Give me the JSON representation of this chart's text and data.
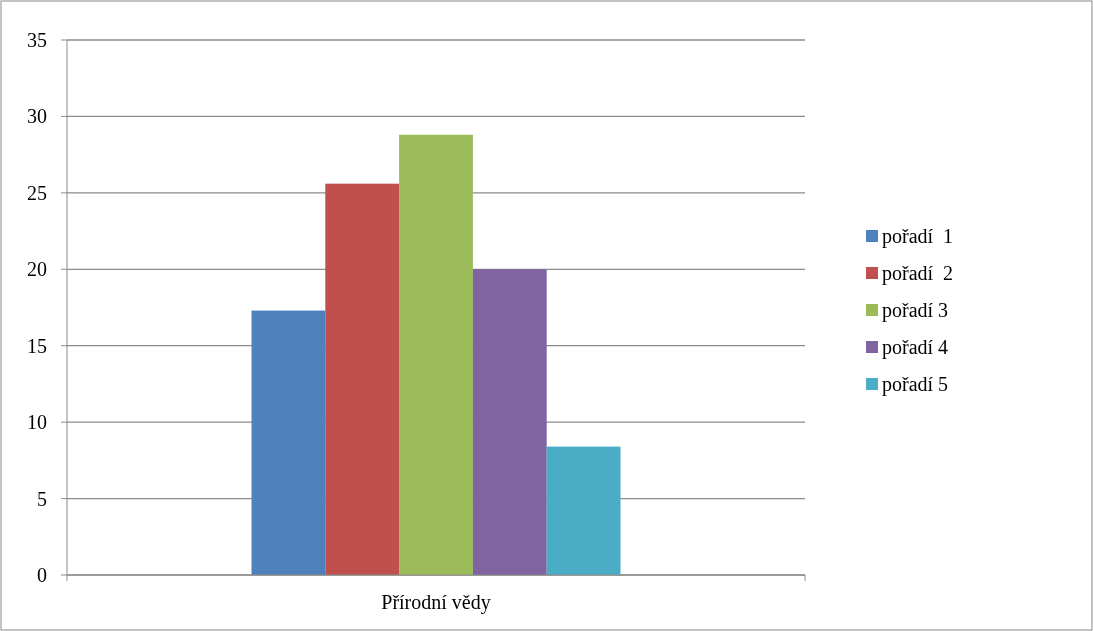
{
  "chart_data": {
    "type": "bar",
    "categories": [
      "Přírodní vědy"
    ],
    "series": [
      {
        "name": "pořadí  1",
        "color": "#4f81bd",
        "values": [
          17.3
        ]
      },
      {
        "name": "pořadí  2",
        "color": "#c0504d",
        "values": [
          25.6
        ]
      },
      {
        "name": "pořadí 3",
        "color": "#9bbb59",
        "values": [
          28.8
        ]
      },
      {
        "name": "pořadí 4",
        "color": "#8064a2",
        "values": [
          20
        ]
      },
      {
        "name": "pořadí 5",
        "color": "#4bacc6",
        "values": [
          8.4
        ]
      }
    ],
    "ylim": [
      0,
      35
    ],
    "yticks": [
      0,
      5,
      10,
      15,
      20,
      25,
      30,
      35
    ],
    "grid": "y",
    "legend": "right"
  }
}
